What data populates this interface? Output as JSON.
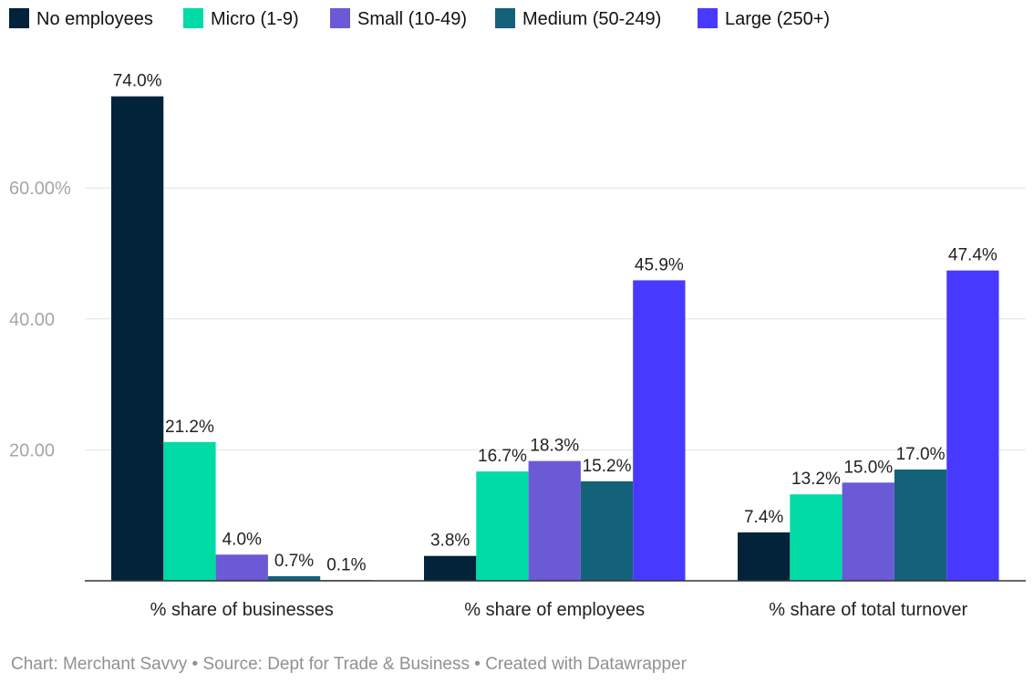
{
  "chart_data": {
    "type": "bar",
    "categories": [
      "% share of businesses",
      "% share of employees",
      "% share of total turnover"
    ],
    "series": [
      {
        "name": "No employees",
        "color": "#03233b",
        "values": [
          74.0,
          3.8,
          7.4
        ],
        "labels": [
          "74.0%",
          "3.8%",
          "7.4%"
        ]
      },
      {
        "name": "Micro (1-9)",
        "color": "#00dba6",
        "values": [
          21.2,
          16.7,
          13.2
        ],
        "labels": [
          "21.2%",
          "16.7%",
          "13.2%"
        ]
      },
      {
        "name": "Small (10-49)",
        "color": "#6a5ad6",
        "values": [
          4.0,
          18.3,
          15.0
        ],
        "labels": [
          "4.0%",
          "18.3%",
          "15.0%"
        ]
      },
      {
        "name": "Medium (50-249)",
        "color": "#14627a",
        "values": [
          0.7,
          15.2,
          17.0
        ],
        "labels": [
          "0.7%",
          "15.2%",
          "17.0%"
        ]
      },
      {
        "name": "Large (250+)",
        "color": "#4839ff",
        "values": [
          0.1,
          45.9,
          47.4
        ],
        "labels": [
          "0.1%",
          "45.9%",
          "47.4%"
        ]
      }
    ],
    "yticks": [
      {
        "value": 20,
        "label": "20.00"
      },
      {
        "value": 40,
        "label": "40.00"
      },
      {
        "value": 60,
        "label": "60.00%"
      }
    ],
    "ylim": [
      0,
      80
    ],
    "grid": true,
    "legend_position": "top-left"
  },
  "footer": {
    "text": "Chart: Merchant Savvy • Source: Dept for Trade & Business • Created with Datawrapper"
  }
}
